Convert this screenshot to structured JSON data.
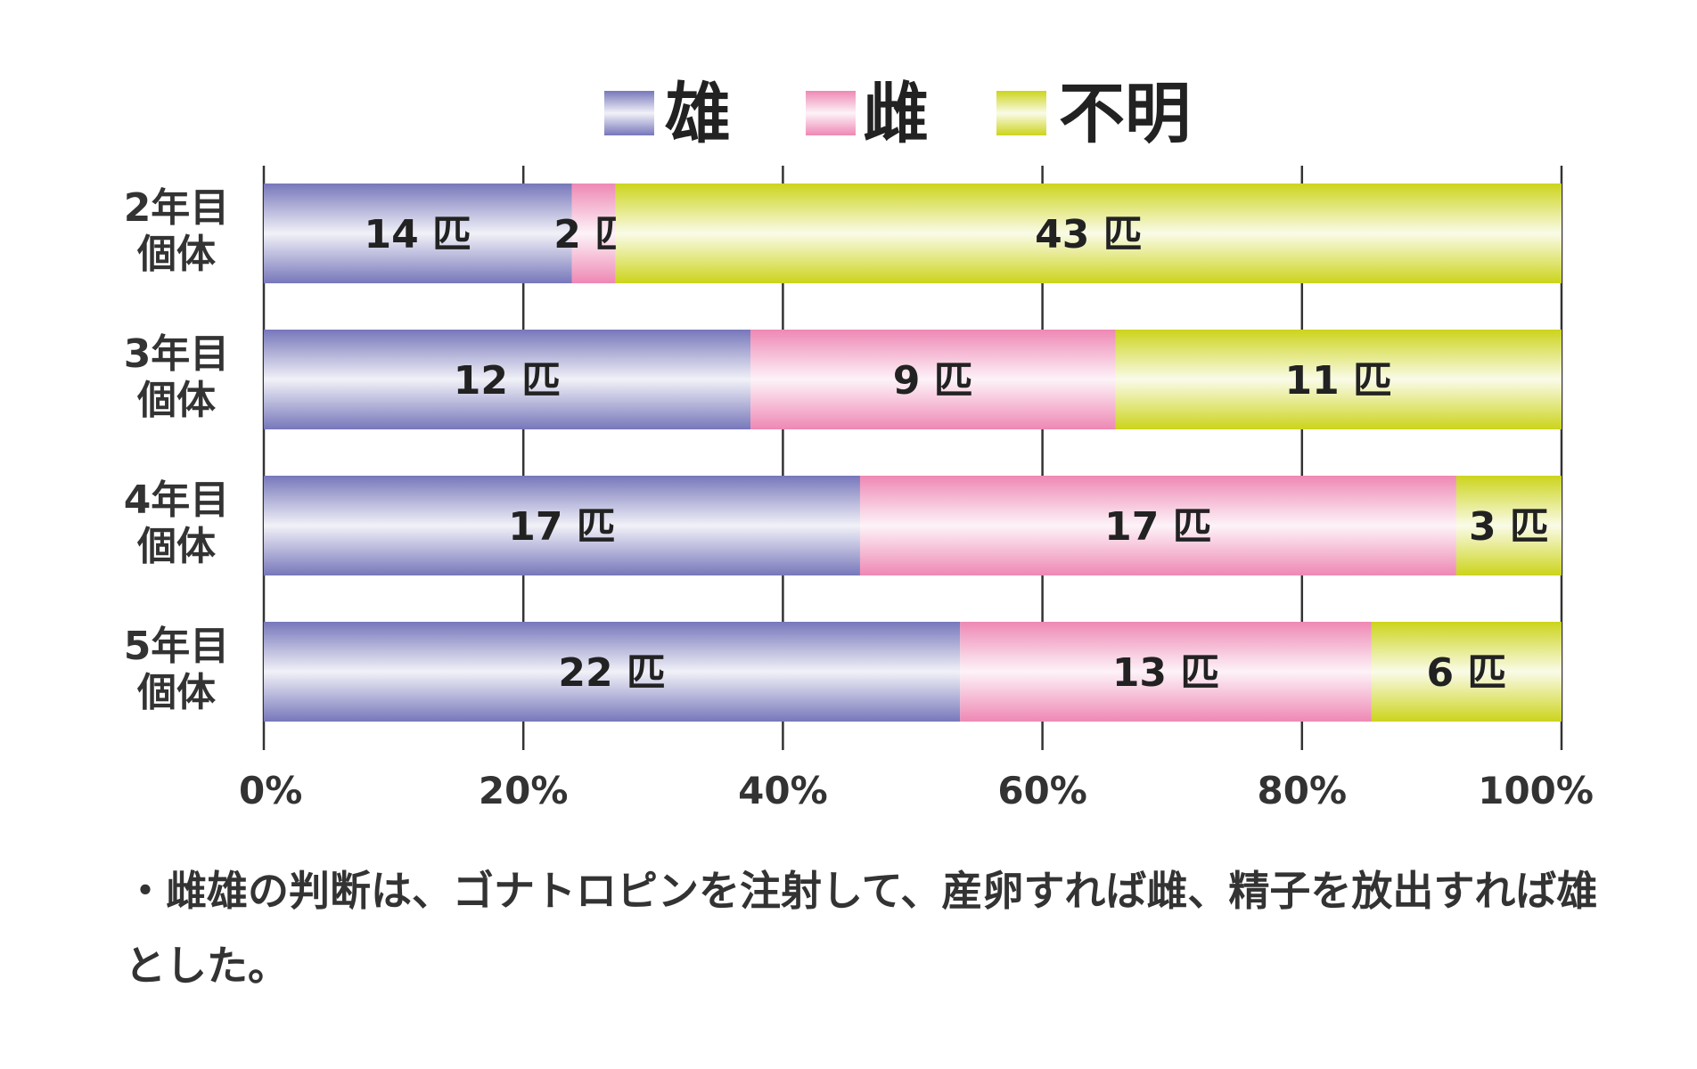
{
  "chart_data": {
    "type": "bar",
    "orientation": "horizontal",
    "stacked": true,
    "percent_stacked": true,
    "categories": [
      [
        "2年目",
        "個体"
      ],
      [
        "3年目",
        "個体"
      ],
      [
        "4年目",
        "個体"
      ],
      [
        "5年目",
        "個体"
      ]
    ],
    "series": [
      {
        "name": "雄",
        "color": "#7777bb",
        "values": [
          14,
          12,
          17,
          22
        ]
      },
      {
        "name": "雌",
        "color": "#ee88b4",
        "values": [
          2,
          9,
          17,
          13
        ]
      },
      {
        "name": "不明",
        "color": "#ccd41c",
        "values": [
          43,
          11,
          3,
          6
        ]
      }
    ],
    "value_unit": "匹",
    "x_ticks": [
      "0%",
      "20%",
      "40%",
      "60%",
      "80%",
      "100%"
    ],
    "xlim": [
      0,
      100
    ],
    "grid": "vertical",
    "legend_position": "top"
  },
  "note": "・雌雄の判断は、ゴナトロピンを注射して、産卵すれば雌、精子を放出すれば雄とした。"
}
